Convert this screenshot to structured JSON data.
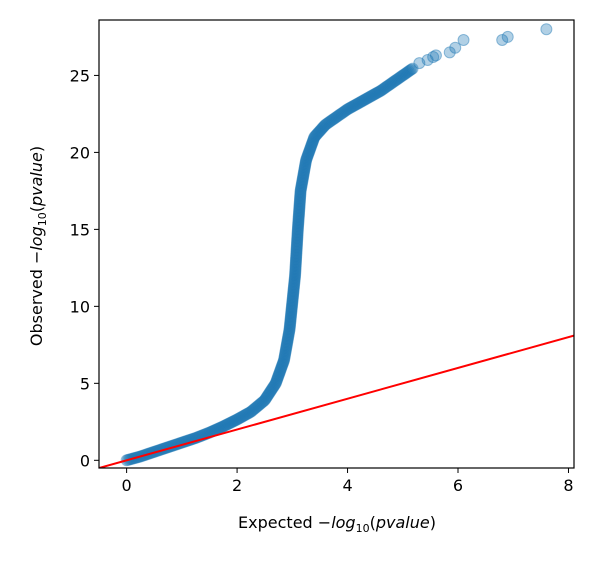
{
  "chart_data": {
    "type": "scatter",
    "xlabel": {
      "prefix": "Expected ",
      "minus": "−",
      "log": "log",
      "sub": "10",
      "arg_open": "(",
      "arg": "pvalue",
      "arg_close": ")"
    },
    "ylabel": {
      "prefix": "Observed ",
      "minus": "−",
      "log": "log",
      "sub": "10",
      "arg_open": "(",
      "arg": "pvalue",
      "arg_close": ")"
    },
    "xlim": [
      -0.5,
      8.1
    ],
    "ylim": [
      -0.5,
      28.6
    ],
    "xticks": [
      0,
      2,
      4,
      6,
      8
    ],
    "yticks": [
      0,
      5,
      10,
      15,
      20,
      25
    ],
    "grid": false,
    "legend": "none",
    "series": [
      {
        "kind": "dense-points",
        "color": "#1f77b4",
        "opacity": 0.35,
        "curve": [
          [
            0.0,
            0.0
          ],
          [
            0.25,
            0.25
          ],
          [
            0.5,
            0.55
          ],
          [
            0.75,
            0.85
          ],
          [
            1.0,
            1.15
          ],
          [
            1.25,
            1.45
          ],
          [
            1.5,
            1.8
          ],
          [
            1.75,
            2.2
          ],
          [
            2.0,
            2.65
          ],
          [
            2.25,
            3.15
          ],
          [
            2.5,
            3.9
          ],
          [
            2.7,
            5.0
          ],
          [
            2.85,
            6.5
          ],
          [
            2.95,
            8.5
          ],
          [
            3.05,
            12.0
          ],
          [
            3.1,
            15.0
          ],
          [
            3.15,
            17.5
          ],
          [
            3.25,
            19.5
          ],
          [
            3.4,
            21.0
          ],
          [
            3.6,
            21.8
          ],
          [
            3.8,
            22.3
          ],
          [
            4.0,
            22.8
          ],
          [
            4.2,
            23.2
          ],
          [
            4.4,
            23.6
          ],
          [
            4.6,
            24.0
          ],
          [
            4.8,
            24.5
          ],
          [
            5.0,
            25.0
          ],
          [
            5.2,
            25.5
          ]
        ]
      },
      {
        "kind": "outlier-points",
        "color": "#1f77b4",
        "opacity": 0.35,
        "points": [
          [
            5.3,
            25.8
          ],
          [
            5.45,
            26.0
          ],
          [
            5.55,
            26.2
          ],
          [
            5.6,
            26.3
          ],
          [
            5.85,
            26.5
          ],
          [
            5.95,
            26.8
          ],
          [
            6.1,
            27.3
          ],
          [
            6.8,
            27.3
          ],
          [
            6.9,
            27.5
          ],
          [
            7.6,
            28.0
          ]
        ]
      },
      {
        "kind": "line",
        "color": "#ff0000",
        "points": [
          [
            -0.5,
            -0.5
          ],
          [
            8.1,
            8.1
          ]
        ]
      }
    ]
  }
}
